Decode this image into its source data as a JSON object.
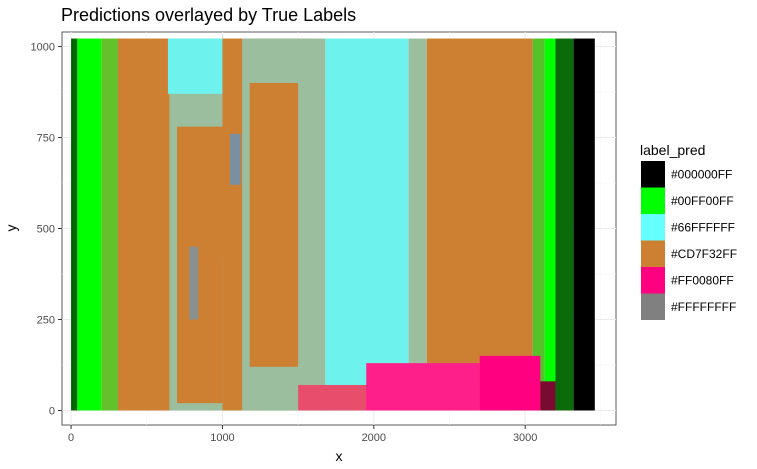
{
  "chart_data": {
    "type": "heatmap",
    "title": "Predictions overlayed by True Labels",
    "xlabel": "x",
    "ylabel": "y",
    "xlim": [
      -60,
      3600
    ],
    "ylim": [
      -40,
      1040
    ],
    "x_ticks": [
      0,
      1000,
      2000,
      3000
    ],
    "y_ticks": [
      0,
      250,
      500,
      750,
      1000
    ],
    "grid": true,
    "legend_position": "right",
    "legend": {
      "title": "label_pred",
      "entries": [
        {
          "label": "#000000FF",
          "color": "#000000"
        },
        {
          "label": "#00FF00FF",
          "color": "#00ff00"
        },
        {
          "label": "#66FFFFFF",
          "color": "#66ffff"
        },
        {
          "label": "#CD7F32FF",
          "color": "#cd7f32"
        },
        {
          "label": "#FF0080FF",
          "color": "#ff0080"
        },
        {
          "label": "#FFFFFFFF",
          "color": "#808080"
        }
      ]
    },
    "regions": [
      {
        "label": "#000000FF",
        "color": "#006400",
        "x0": 0,
        "x1": 60,
        "y0": 0,
        "y1": 1022
      },
      {
        "label": "#00FF00FF",
        "color": "#00ff00",
        "x0": 40,
        "x1": 200,
        "y0": 0,
        "y1": 1022
      },
      {
        "label": "#00FF00FF",
        "color": "#63c22a",
        "x0": 200,
        "x1": 310,
        "y0": 0,
        "y1": 1022
      },
      {
        "label": "#CD7F32FF",
        "color": "#cd7f32",
        "x0": 310,
        "x1": 650,
        "y0": 0,
        "y1": 1022
      },
      {
        "label": "#FFFFFFFF",
        "color": "#9bbf9e",
        "x0": 650,
        "x1": 1000,
        "y0": 0,
        "y1": 1022
      },
      {
        "label": "#CD7F32FF",
        "color": "#cd7f32",
        "x0": 700,
        "x1": 1000,
        "y0": 20,
        "y1": 780
      },
      {
        "label": "#66FFFFFF",
        "color": "#6ef2ee",
        "x0": 640,
        "x1": 1000,
        "y0": 870,
        "y1": 1022
      },
      {
        "label": "#66FFFFFF",
        "color": "#6ef2ee",
        "x0": 1000,
        "x1": 1180,
        "y0": 0,
        "y1": 420
      },
      {
        "label": "#CD7F32FF",
        "color": "#cd7f32",
        "x0": 1000,
        "x1": 1600,
        "y0": 0,
        "y1": 1022
      },
      {
        "label": "#FFFFFFFF",
        "color": "#9bbf9e",
        "x0": 1130,
        "x1": 1680,
        "y0": 0,
        "y1": 1022
      },
      {
        "label": "#CD7F32FF",
        "color": "#cd7f32",
        "x0": 1180,
        "x1": 1500,
        "y0": 120,
        "y1": 900
      },
      {
        "label": "#66FFFFFF",
        "color": "#6ef2ee",
        "x0": 1680,
        "x1": 2230,
        "y0": 0,
        "y1": 1022
      },
      {
        "label": "#FFFFFFFF",
        "color": "#9bbf9e",
        "x0": 2230,
        "x1": 2350,
        "y0": 0,
        "y1": 1022
      },
      {
        "label": "#CD7F32FF",
        "color": "#cd7f32",
        "x0": 2350,
        "x1": 3050,
        "y0": 0,
        "y1": 1022
      },
      {
        "label": "#00FF00FF",
        "color": "#55c22c",
        "x0": 3050,
        "x1": 3130,
        "y0": 0,
        "y1": 1022
      },
      {
        "label": "#00FF00FF",
        "color": "#00ff00",
        "x0": 3130,
        "x1": 3200,
        "y0": 0,
        "y1": 1022
      },
      {
        "label": "#000000FF",
        "color": "#0b6b0b",
        "x0": 3200,
        "x1": 3320,
        "y0": 0,
        "y1": 1022
      },
      {
        "label": "#000000FF",
        "color": "#000000",
        "x0": 3320,
        "x1": 3460,
        "y0": 0,
        "y1": 1022
      },
      {
        "label": "#FF0080FF",
        "color": "#e84d6c",
        "x0": 1500,
        "x1": 2900,
        "y0": 0,
        "y1": 70
      },
      {
        "label": "#FF0080FF",
        "color": "#ff1f8a",
        "x0": 1950,
        "x1": 2700,
        "y0": 0,
        "y1": 130
      },
      {
        "label": "#FF0080FF",
        "color": "#ff0080",
        "x0": 2700,
        "x1": 3100,
        "y0": 0,
        "y1": 150
      },
      {
        "label": "#FF0080FF",
        "color": "#7a0a30",
        "x0": 3100,
        "x1": 3200,
        "y0": 0,
        "y1": 80
      },
      {
        "label": "#FFFFFFFF",
        "color": "#7a8fa0",
        "x0": 1050,
        "x1": 1120,
        "y0": 620,
        "y1": 760
      },
      {
        "label": "#FFFFFFFF",
        "color": "#8a8f8f",
        "x0": 780,
        "x1": 840,
        "y0": 250,
        "y1": 450
      }
    ]
  }
}
